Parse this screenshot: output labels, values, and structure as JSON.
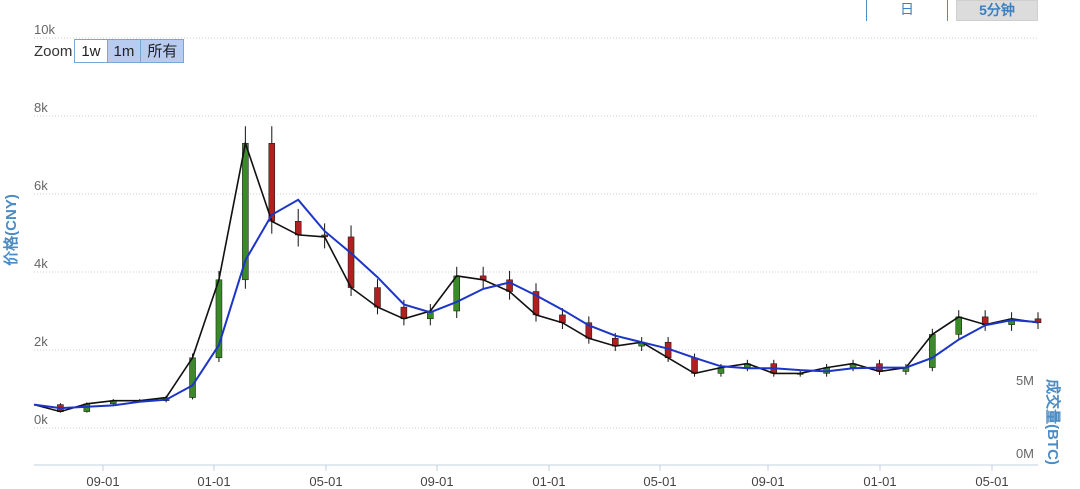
{
  "period_buttons": {
    "day": "日",
    "five_min": "5分钟"
  },
  "zoom": {
    "label": "Zoom",
    "options": [
      "1w",
      "1m",
      "所有"
    ],
    "active": "1m"
  },
  "colors": {
    "ma_short": "#1a1a7a",
    "ma_long": "#1c34c8",
    "price": "#111111",
    "up_body": "#3a8a2a",
    "down_body": "#b02020",
    "volume": "#3b9ad6",
    "axis_label": "#4c8cc4"
  },
  "chart_data": {
    "type": "line",
    "subtype": "candlestick-with-volume",
    "ylabel": "价格(CNY)",
    "volume_label": "成交量(BTC)",
    "y_ticks": [
      "0k",
      "2k",
      "4k",
      "6k",
      "8k",
      "10k"
    ],
    "ylim": [
      0,
      10000
    ],
    "volume_ticks": [
      "0M",
      "5M"
    ],
    "volume_ylim": [
      0,
      5000000
    ],
    "x_ticks": [
      "09-01",
      "01-01",
      "05-01",
      "09-01",
      "01-01",
      "05-01",
      "09-01",
      "01-01",
      "05-01"
    ],
    "grid": true,
    "series": [
      {
        "x": [
          0,
          1,
          2,
          3,
          4,
          5,
          6,
          7,
          8,
          9,
          10,
          11,
          12,
          13,
          14,
          15,
          16,
          17,
          18,
          19,
          20,
          21,
          22,
          23,
          24,
          25,
          26,
          27,
          28,
          29,
          30,
          31,
          32,
          33,
          34,
          35,
          36,
          37,
          38
        ],
        "values": [
          600,
          450,
          650,
          700,
          700,
          800,
          1800,
          3800,
          7200,
          5200,
          4900,
          4900,
          3600,
          3100,
          2800,
          3000,
          3900,
          3800,
          3500,
          2900,
          2700,
          2300,
          2100,
          2200,
          1800,
          1400,
          1550,
          1650,
          1400,
          1400,
          1550,
          1650,
          1450,
          1500,
          2300,
          2850,
          2650,
          2800,
          2700
        ]
      }
    ],
    "close": [
      [
        0,
        600
      ],
      [
        1,
        420
      ],
      [
        2,
        620
      ],
      [
        3,
        700
      ],
      [
        4,
        700
      ],
      [
        5,
        780
      ],
      [
        6,
        1800
      ],
      [
        7,
        3800
      ],
      [
        8,
        7300
      ],
      [
        9,
        5300
      ],
      [
        10,
        4950
      ],
      [
        11,
        4900
      ],
      [
        12,
        3600
      ],
      [
        13,
        3100
      ],
      [
        14,
        2800
      ],
      [
        15,
        3000
      ],
      [
        16,
        3900
      ],
      [
        17,
        3800
      ],
      [
        18,
        3500
      ],
      [
        19,
        2900
      ],
      [
        20,
        2700
      ],
      [
        21,
        2300
      ],
      [
        22,
        2100
      ],
      [
        23,
        2200
      ],
      [
        24,
        1800
      ],
      [
        25,
        1400
      ],
      [
        26,
        1550
      ],
      [
        27,
        1650
      ],
      [
        28,
        1400
      ],
      [
        29,
        1400
      ],
      [
        30,
        1550
      ],
      [
        31,
        1650
      ],
      [
        32,
        1450
      ],
      [
        33,
        1550
      ],
      [
        34,
        2400
      ],
      [
        35,
        2850
      ],
      [
        36,
        2650
      ],
      [
        37,
        2800
      ],
      [
        38,
        2700
      ]
    ],
    "volume": [
      0,
      0,
      0,
      0,
      0,
      0,
      0,
      0,
      0,
      0,
      0,
      0,
      0,
      0,
      0,
      0,
      0,
      0,
      0,
      0,
      0,
      0,
      0,
      0,
      0,
      0,
      0,
      0,
      0,
      0,
      0,
      0,
      0,
      0,
      0,
      0,
      0,
      0,
      0
    ]
  }
}
